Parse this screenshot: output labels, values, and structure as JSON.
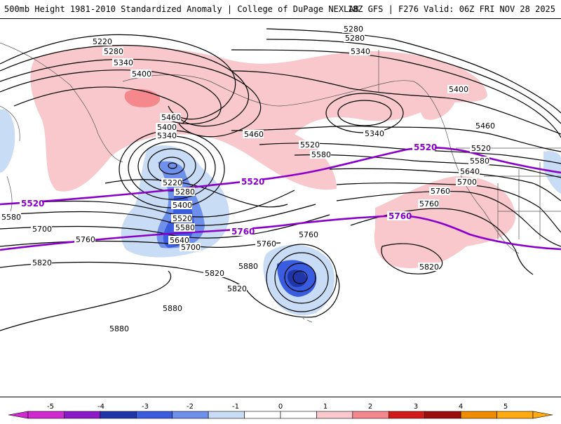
{
  "header": {
    "title": "500mb Height 1981-2010 Standardized Anomaly | College of DuPage NEXLAB",
    "run": "18Z GFS | F276 Valid: 06Z FRI NOV 28 2025"
  },
  "contour_labels": [
    "5220",
    "5280",
    "5340",
    "5400",
    "5460",
    "5400",
    "5340",
    "5220",
    "5280",
    "5400",
    "5520",
    "5580",
    "5640",
    "5700",
    "5760",
    "5820",
    "5880",
    "5580",
    "5700",
    "5760",
    "5820",
    "5460",
    "5520",
    "5580",
    "5760",
    "5760",
    "5280",
    "5280",
    "5340",
    "5340",
    "5400",
    "5460",
    "5520",
    "5580",
    "5640",
    "5700",
    "5760",
    "5820",
    "5880",
    "5820",
    "5880"
  ],
  "highlight_labels": [
    "5520",
    "5760",
    "5520",
    "5520",
    "5760"
  ],
  "colorbar": {
    "ticks": [
      "-5",
      "-4",
      "-3",
      "-2",
      "-1",
      "0",
      "1",
      "2",
      "3",
      "4",
      "5"
    ],
    "colors": [
      "#d12ad0",
      "#8c1ac8",
      "#2036a8",
      "#3a5de0",
      "#6e90ea",
      "#c8dcf6",
      "#ffffff",
      "#ffffff",
      "#f8c8cc",
      "#f4888c",
      "#d21a1a",
      "#9a0e0e",
      "#f08c00",
      "#ffaa10"
    ]
  }
}
